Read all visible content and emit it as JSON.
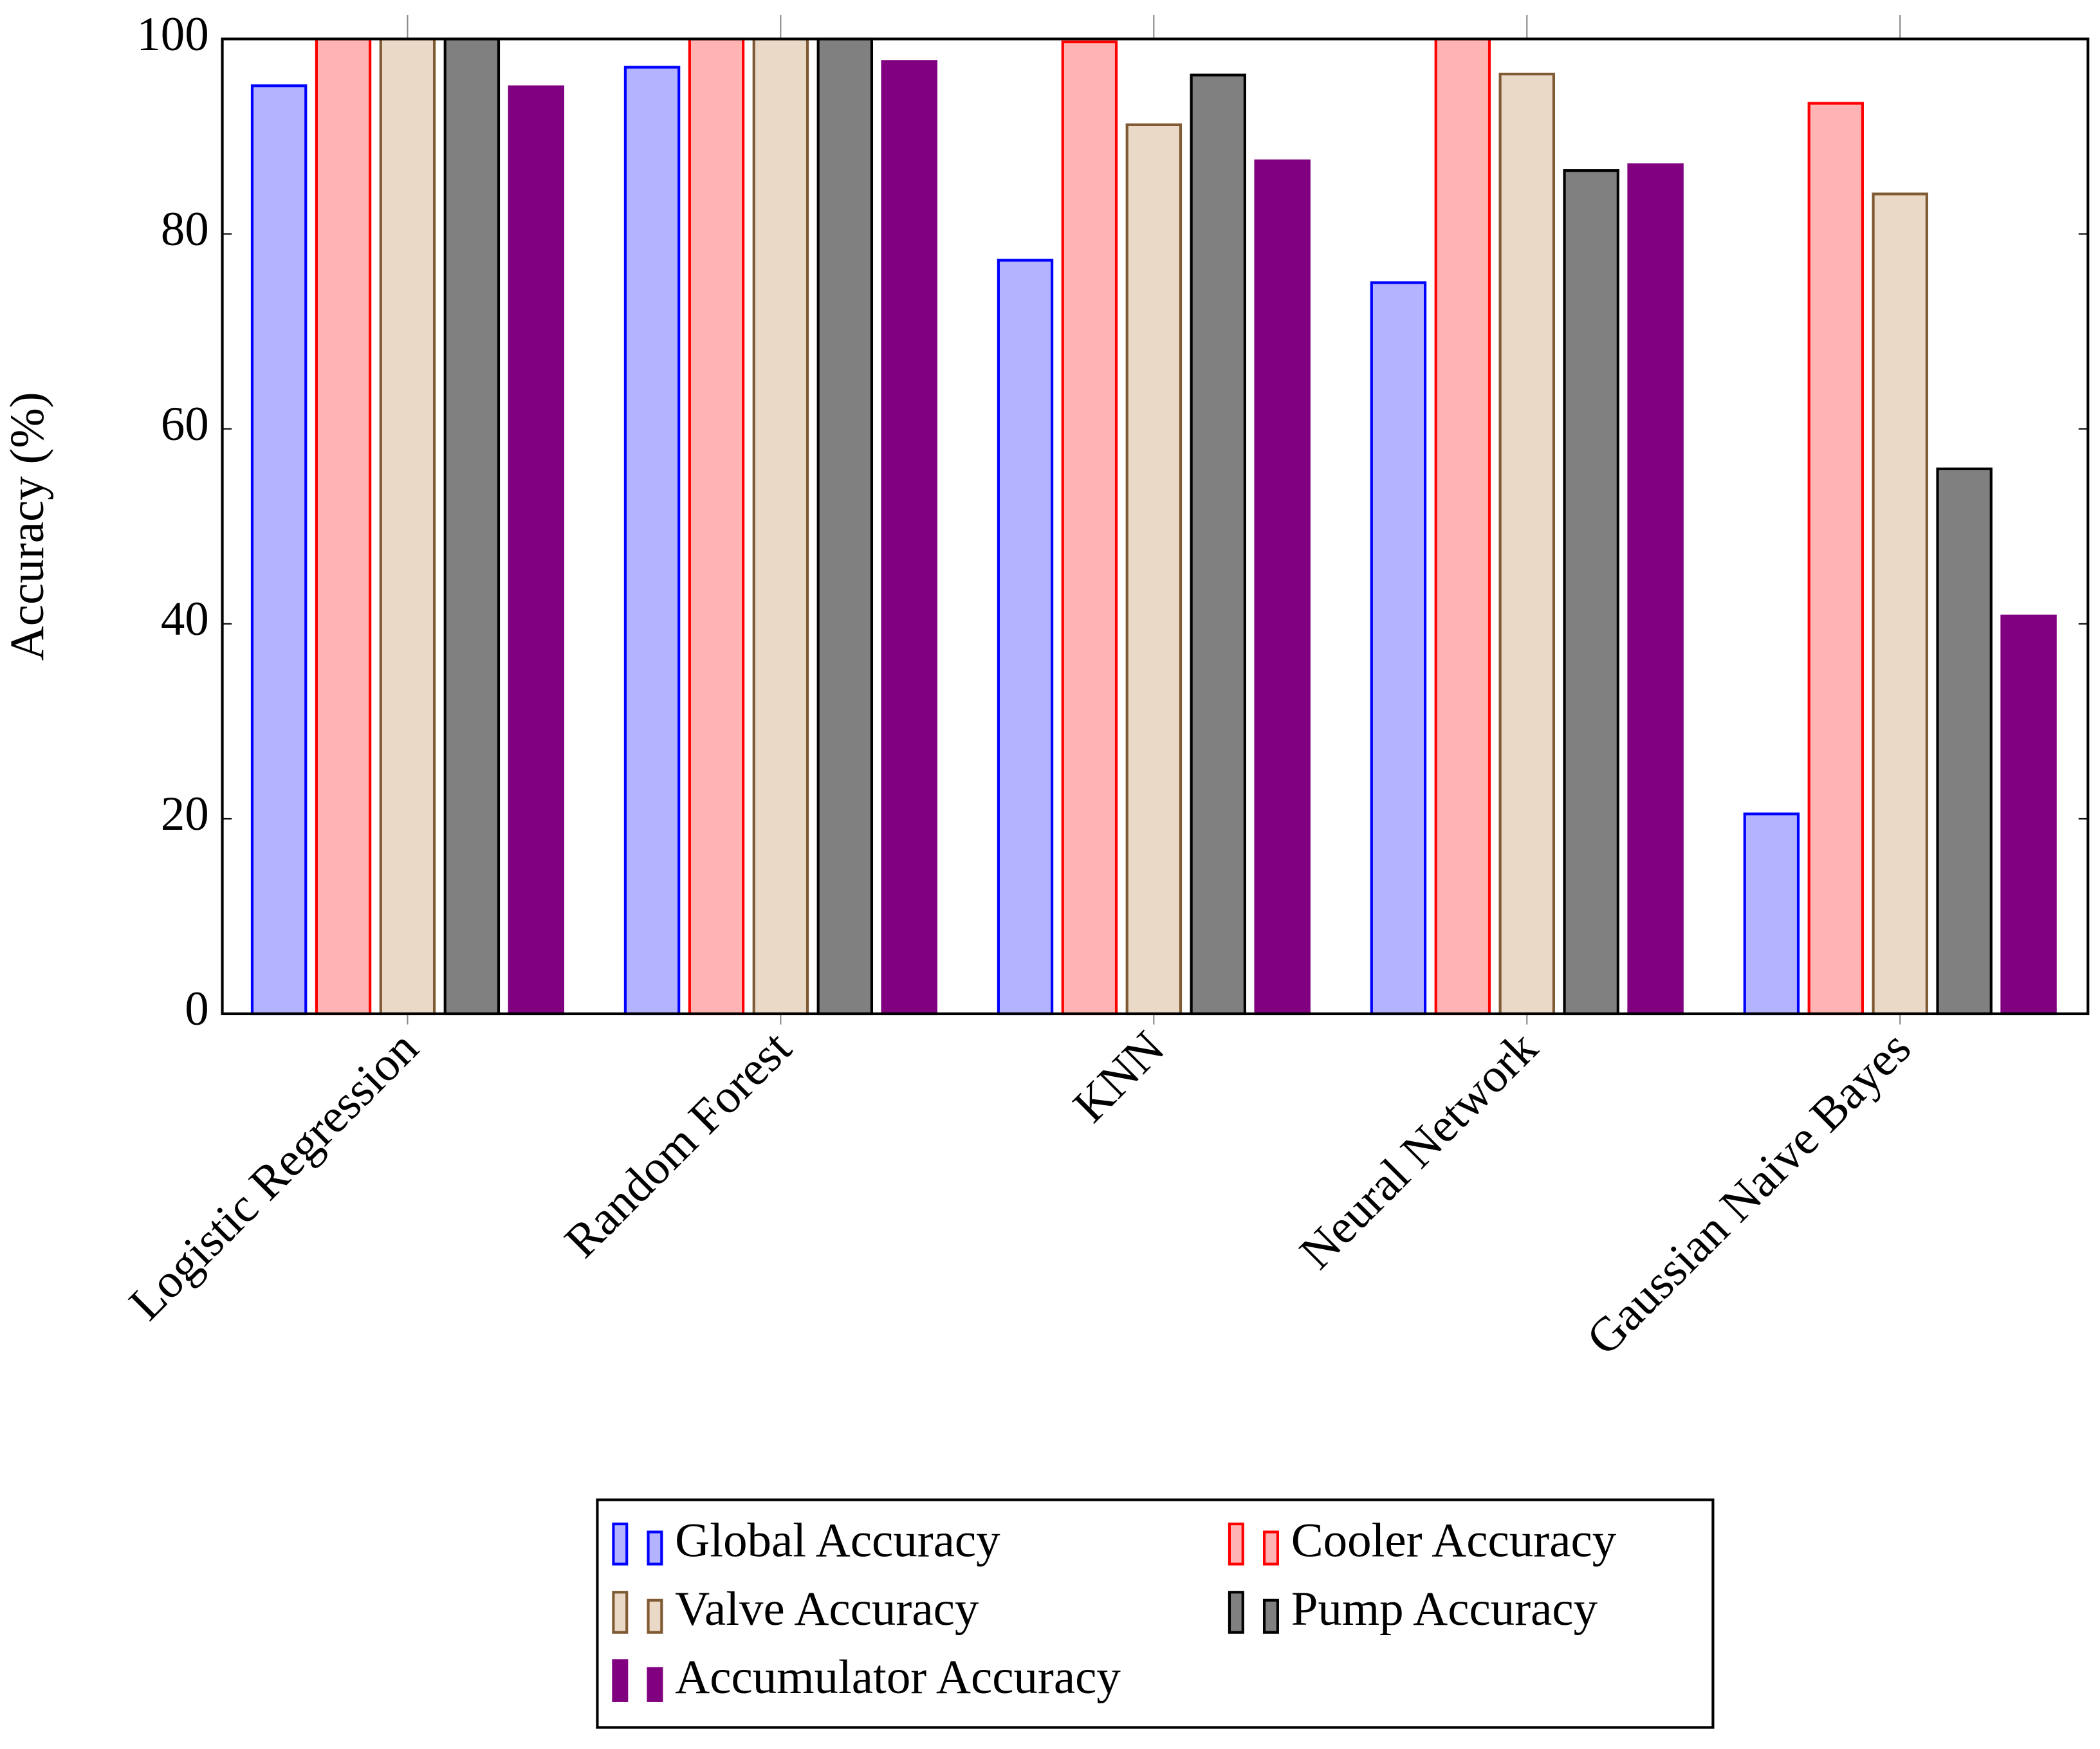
{
  "chart_data": {
    "type": "bar",
    "y_label": "Accuracy (%)",
    "categories": [
      "Logistic Regression",
      "Random Forest",
      "KNN",
      "Neural Network",
      "Gaussian Naive Bayes"
    ],
    "series": [
      {
        "name": "Global Accuracy",
        "color": "#b3b3ff",
        "edgecolor": "#0000ff",
        "values": [
          95.2,
          97.1,
          77.3,
          75.0,
          20.5
        ]
      },
      {
        "name": "Cooler Accuracy",
        "color": "#ffb3b3",
        "edgecolor": "#ff0000",
        "values": [
          100,
          100,
          99.7,
          100,
          93.4
        ]
      },
      {
        "name": "Valve Accuracy",
        "color": "#ead9c6",
        "edgecolor": "#7f5a33",
        "values": [
          100,
          100,
          91.2,
          96.4,
          84.1
        ]
      },
      {
        "name": "Pump Accuracy",
        "color": "#808080",
        "edgecolor": "#000000",
        "values": [
          100,
          100,
          96.3,
          86.5,
          55.9
        ]
      },
      {
        "name": "Accumulator Accuracy",
        "color": "#800080",
        "edgecolor": "#800080",
        "values": [
          95.1,
          97.7,
          87.5,
          87.1,
          40.8
        ]
      }
    ],
    "ylim": [
      0,
      100
    ],
    "yticks": [
      0,
      20,
      40,
      60,
      80,
      100
    ],
    "grid": false,
    "legend_position": "bottom",
    "legend_columns": 2
  }
}
